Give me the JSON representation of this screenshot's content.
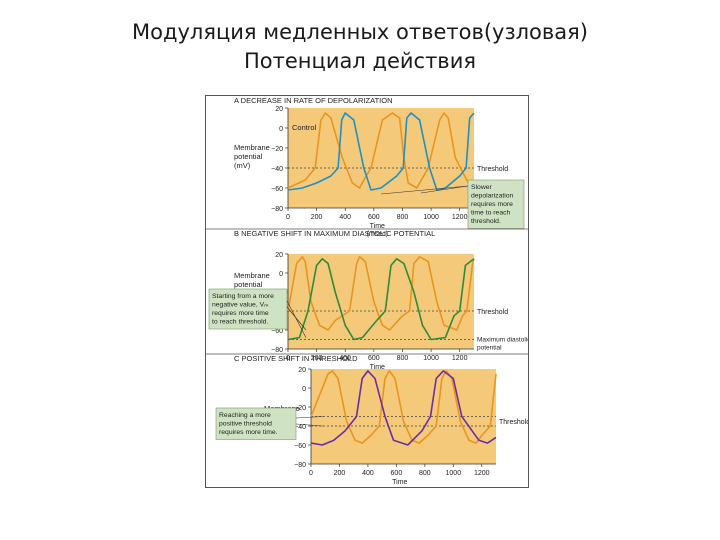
{
  "slide": {
    "title_line1": "Модуляция медленных ответов(узловая)",
    "title_line2": "Потенциал действия"
  },
  "colors": {
    "plot_bg": "#f5c97a",
    "panel_a_series": "#1f8fc7",
    "control": "#e8951f",
    "panel_b_series": "#2e8b3a",
    "panel_c_series": "#6a2fa0",
    "callout_bg": "#cfe3c4"
  },
  "chart_data": [
    {
      "type": "line",
      "panel": "A",
      "title": "A  DECREASE IN RATE OF DEPOLARIZATION",
      "ylabel": [
        "Membrane",
        "potential",
        "(mV)"
      ],
      "xlabel": [
        "Time",
        "(msec)"
      ],
      "y_ticks": [
        "20",
        "0",
        "−20",
        "−40",
        "−60",
        "−80"
      ],
      "x_ticks": [
        "0",
        "200",
        "400",
        "600",
        "800",
        "1000",
        "1200"
      ],
      "xlim": [
        0,
        1300
      ],
      "ylim": [
        -80,
        20
      ],
      "threshold_value": -40,
      "threshold_label": "Threshold",
      "series_label": "Control",
      "callout": [
        "Slower",
        "depolarization",
        "requires more",
        "time to reach",
        "threshold."
      ],
      "series": [
        {
          "color": "#e8951f",
          "x": [
            0,
            120,
            190,
            230,
            260,
            300,
            380,
            450,
            500,
            530,
            580,
            660,
            730,
            780,
            810,
            840,
            900,
            980,
            1060,
            1090,
            1120,
            1170,
            1260,
            1300
          ],
          "y": [
            -60,
            -52,
            -40,
            8,
            15,
            10,
            -30,
            -55,
            -60,
            -52,
            -40,
            8,
            15,
            10,
            -30,
            -55,
            -60,
            -40,
            8,
            15,
            10,
            -30,
            -55,
            -58
          ]
        },
        {
          "color": "#1f8fc7",
          "x": [
            0,
            100,
            200,
            300,
            350,
            375,
            400,
            460,
            530,
            580,
            650,
            760,
            805,
            830,
            860,
            920,
            990,
            1040,
            1100,
            1200,
            1245,
            1270,
            1300
          ],
          "y": [
            -62,
            -60,
            -55,
            -48,
            -40,
            8,
            15,
            8,
            -40,
            -62,
            -60,
            -48,
            -40,
            10,
            15,
            8,
            -40,
            -62,
            -60,
            -48,
            -40,
            10,
            15
          ]
        }
      ]
    },
    {
      "type": "line",
      "panel": "B",
      "title": "B  NEGATIVE SHIFT IN MAXIMUM DIASTOLIC POTENTIAL",
      "ylabel": [
        "Membrane",
        "potential",
        "(mV)"
      ],
      "xlabel": [
        "Time"
      ],
      "y_ticks": [
        "20",
        "0",
        "−20",
        "−40",
        "−60",
        "−80"
      ],
      "x_ticks": [
        "0",
        "200",
        "400",
        "600",
        "800",
        "1000",
        "1200"
      ],
      "xlim": [
        0,
        1300
      ],
      "ylim": [
        -80,
        20
      ],
      "threshold_value": -40,
      "threshold_label": "Threshold",
      "mdp_value": -70,
      "mdp_label": [
        "Maximum diastolic",
        "potential"
      ],
      "callout": [
        "Starting from a more",
        "negative value, Vₘ",
        "requires more time",
        "to reach threshold."
      ],
      "series": [
        {
          "color": "#e8951f",
          "x": [
            0,
            60,
            100,
            120,
            160,
            220,
            280,
            330,
            430,
            480,
            500,
            540,
            600,
            660,
            710,
            800,
            850,
            880,
            920,
            980,
            1040,
            1090,
            1180,
            1220,
            1250,
            1290,
            1300
          ],
          "y": [
            -40,
            10,
            17,
            12,
            -30,
            -55,
            -60,
            -50,
            -40,
            10,
            17,
            12,
            -30,
            -55,
            -60,
            -45,
            -40,
            10,
            17,
            12,
            -30,
            -55,
            -60,
            -45,
            -40,
            10,
            15
          ]
        },
        {
          "color": "#2e8b3a",
          "x": [
            0,
            80,
            140,
            200,
            240,
            280,
            330,
            400,
            460,
            520,
            620,
            680,
            720,
            760,
            810,
            880,
            940,
            1000,
            1100,
            1160,
            1200,
            1240,
            1300
          ],
          "y": [
            -70,
            -68,
            -40,
            8,
            15,
            10,
            -20,
            -55,
            -70,
            -68,
            -50,
            -40,
            8,
            15,
            10,
            -20,
            -55,
            -70,
            -68,
            -45,
            -40,
            8,
            15
          ]
        }
      ]
    },
    {
      "type": "line",
      "panel": "C",
      "title": "C  POSITIVE SHIFT IN THRESHOLD",
      "ylabel": [
        "Membrane",
        "potential",
        "(mV)"
      ],
      "xlabel": [
        "Time",
        "(msec)"
      ],
      "y_ticks": [
        "20",
        "0",
        "−20",
        "−40",
        "−60",
        "−80"
      ],
      "x_ticks": [
        "0",
        "200",
        "400",
        "600",
        "800",
        "1000",
        "1200"
      ],
      "xlim": [
        0,
        1300
      ],
      "ylim": [
        -80,
        20
      ],
      "threshold_value": -40,
      "threshold_high_value": -30,
      "threshold_label": "Thresholds",
      "callout": [
        "Reaching a more",
        "positive threshold",
        "requires more time."
      ],
      "series": [
        {
          "color": "#e8951f",
          "x": [
            0,
            80,
            120,
            150,
            190,
            250,
            310,
            360,
            420,
            480,
            520,
            550,
            590,
            650,
            710,
            760,
            820,
            880,
            920,
            950,
            990,
            1050,
            1110,
            1160,
            1200,
            1260,
            1300
          ],
          "y": [
            -30,
            0,
            15,
            18,
            10,
            -35,
            -55,
            -58,
            -50,
            -40,
            10,
            18,
            10,
            -35,
            -55,
            -58,
            -50,
            -40,
            10,
            18,
            10,
            -35,
            -55,
            -58,
            -50,
            -40,
            15
          ]
        },
        {
          "color": "#6a2fa0",
          "x": [
            0,
            80,
            160,
            240,
            320,
            360,
            400,
            450,
            520,
            580,
            680,
            780,
            840,
            880,
            930,
            1000,
            1060,
            1180,
            1240,
            1300
          ],
          "y": [
            -58,
            -60,
            -55,
            -45,
            -30,
            10,
            18,
            10,
            -30,
            -55,
            -60,
            -45,
            -30,
            10,
            18,
            10,
            -30,
            -55,
            -58,
            -52
          ]
        }
      ]
    }
  ]
}
